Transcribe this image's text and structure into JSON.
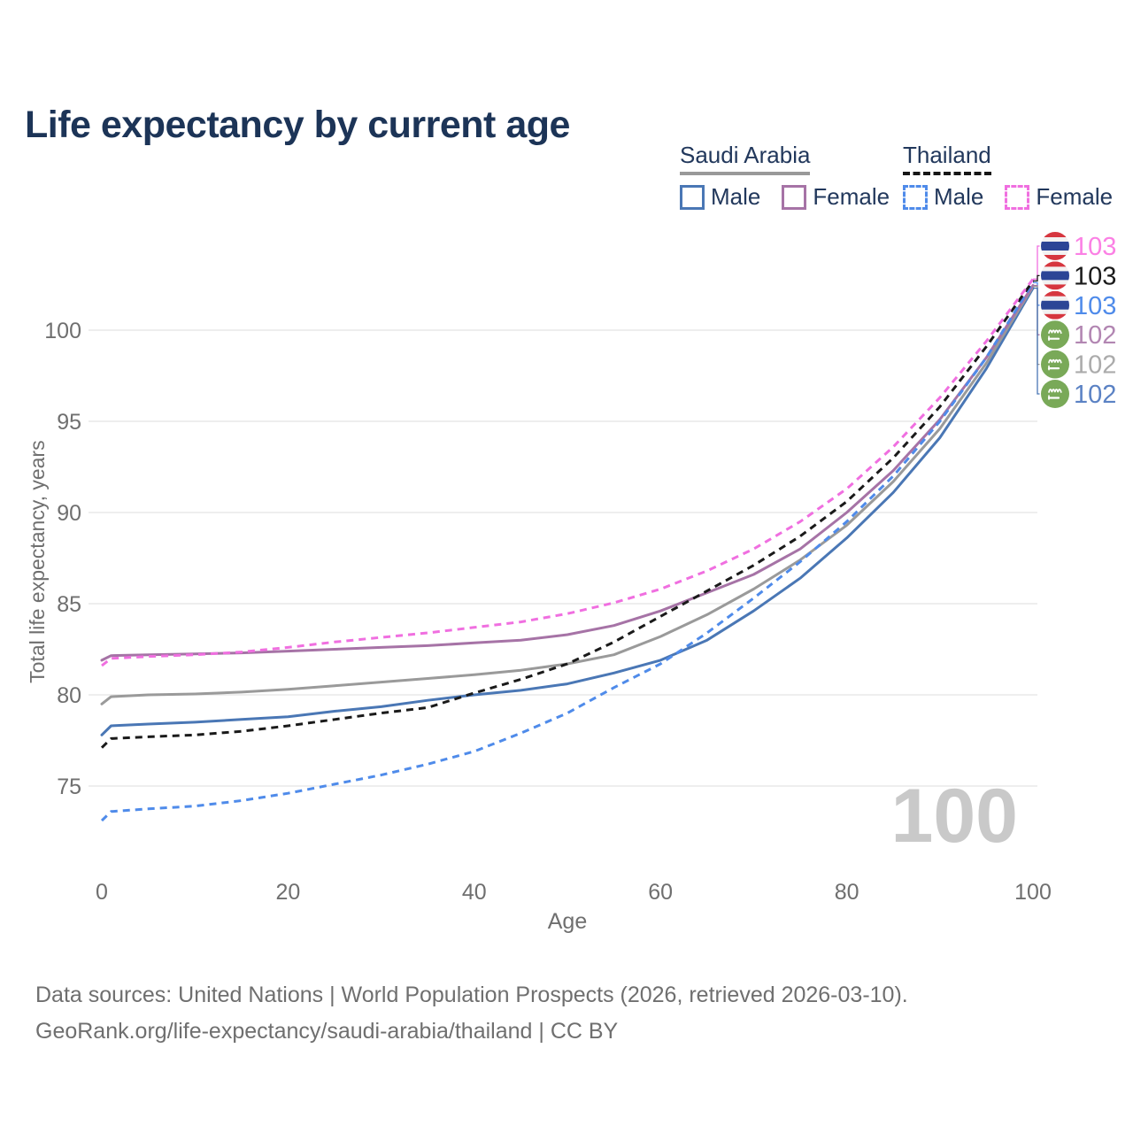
{
  "title": "Life expectancy by current age",
  "legend": {
    "groups": [
      {
        "name": "Saudi Arabia",
        "line_style": "solid",
        "underline_color": "#999999",
        "items": [
          {
            "label": "Male",
            "color": "#4a77b5"
          },
          {
            "label": "Female",
            "color": "#a673a6"
          }
        ]
      },
      {
        "name": "Thailand",
        "line_style": "dashed",
        "underline_color": "#161616",
        "items": [
          {
            "label": "Male",
            "color": "#4f8bea"
          },
          {
            "label": "Female",
            "color": "#f06fe0"
          }
        ]
      }
    ]
  },
  "chart_data": {
    "type": "line",
    "title": "Life expectancy by current age",
    "xlabel": "Age",
    "ylabel": "Total life expectancy, years",
    "x_ticks": [
      0,
      20,
      40,
      60,
      80,
      100
    ],
    "y_ticks": [
      75,
      80,
      85,
      90,
      95,
      100
    ],
    "xlim": [
      0,
      100
    ],
    "ylim_displayed": [
      72.5,
      103.5
    ],
    "grid": "horizontal",
    "legend_position": "top-right",
    "watermark": "100",
    "x": [
      0,
      1,
      5,
      10,
      15,
      20,
      25,
      30,
      35,
      40,
      45,
      50,
      55,
      60,
      65,
      70,
      75,
      80,
      85,
      90,
      95,
      100
    ],
    "series": [
      {
        "name": "Saudi Arabia Male",
        "country": "Saudi Arabia",
        "sex": "Male",
        "dash": false,
        "color": "#4a77b5",
        "flag": "saudi-arabia",
        "end_label": "102",
        "end_label_color": "#5b82c4",
        "values": [
          77.8,
          78.3,
          78.4,
          78.5,
          78.65,
          78.8,
          79.1,
          79.35,
          79.7,
          80.0,
          80.25,
          80.6,
          81.2,
          81.9,
          83.0,
          84.6,
          86.4,
          88.6,
          91.1,
          94.1,
          97.9,
          102.3
        ]
      },
      {
        "name": "Saudi Arabia",
        "country": "Saudi Arabia",
        "sex": "Both",
        "dash": false,
        "color": "#9a9a9a",
        "flag": "saudi-arabia",
        "end_label": "102",
        "end_label_color": "#ababab",
        "values": [
          79.5,
          79.9,
          80.0,
          80.05,
          80.15,
          80.3,
          80.5,
          80.7,
          80.9,
          81.1,
          81.35,
          81.7,
          82.2,
          83.2,
          84.4,
          85.8,
          87.4,
          89.3,
          91.7,
          94.6,
          98.2,
          102.4
        ]
      },
      {
        "name": "Saudi Arabia Female",
        "country": "Saudi Arabia",
        "sex": "Female",
        "dash": false,
        "color": "#a673a6",
        "flag": "saudi-arabia",
        "end_label": "102",
        "end_label_color": "#b286b2",
        "values": [
          81.9,
          82.15,
          82.2,
          82.25,
          82.3,
          82.4,
          82.5,
          82.6,
          82.7,
          82.85,
          83.0,
          83.3,
          83.8,
          84.6,
          85.6,
          86.6,
          88.0,
          90.0,
          92.3,
          95.1,
          98.5,
          102.45
        ]
      },
      {
        "name": "Thailand Male",
        "country": "Thailand",
        "sex": "Male",
        "dash": true,
        "color": "#4f8bea",
        "flag": "thailand",
        "end_label": "103",
        "end_label_color": "#4f8bea",
        "values": [
          73.1,
          73.6,
          73.75,
          73.9,
          74.2,
          74.6,
          75.1,
          75.6,
          76.2,
          76.9,
          77.9,
          79.0,
          80.4,
          81.7,
          83.4,
          85.3,
          87.3,
          89.5,
          92.0,
          95.0,
          98.5,
          102.6
        ]
      },
      {
        "name": "Thailand",
        "country": "Thailand",
        "sex": "Both",
        "dash": true,
        "color": "#1a1a1a",
        "flag": "thailand",
        "end_label": "103",
        "end_label_color": "#1a1a1a",
        "values": [
          77.1,
          77.6,
          77.7,
          77.8,
          78.0,
          78.3,
          78.65,
          79.0,
          79.3,
          80.1,
          80.85,
          81.7,
          82.9,
          84.3,
          85.7,
          87.1,
          88.7,
          90.6,
          93.0,
          95.8,
          99.1,
          102.7
        ]
      },
      {
        "name": "Thailand Female",
        "country": "Thailand",
        "sex": "Female",
        "dash": true,
        "color": "#f06fe0",
        "flag": "thailand",
        "end_label": "103",
        "end_label_color": "#fb80e4",
        "values": [
          81.6,
          82.0,
          82.1,
          82.2,
          82.35,
          82.6,
          82.9,
          83.15,
          83.4,
          83.7,
          84.0,
          84.45,
          85.05,
          85.8,
          86.8,
          88.0,
          89.5,
          91.3,
          93.6,
          96.3,
          99.4,
          102.8
        ]
      }
    ]
  },
  "footer": {
    "line1": "Data sources: United Nations | World Population Prospects (2026, retrieved 2026-03-10).",
    "line2": "GeoRank.org/life-expectancy/saudi-arabia/thailand | CC BY"
  }
}
